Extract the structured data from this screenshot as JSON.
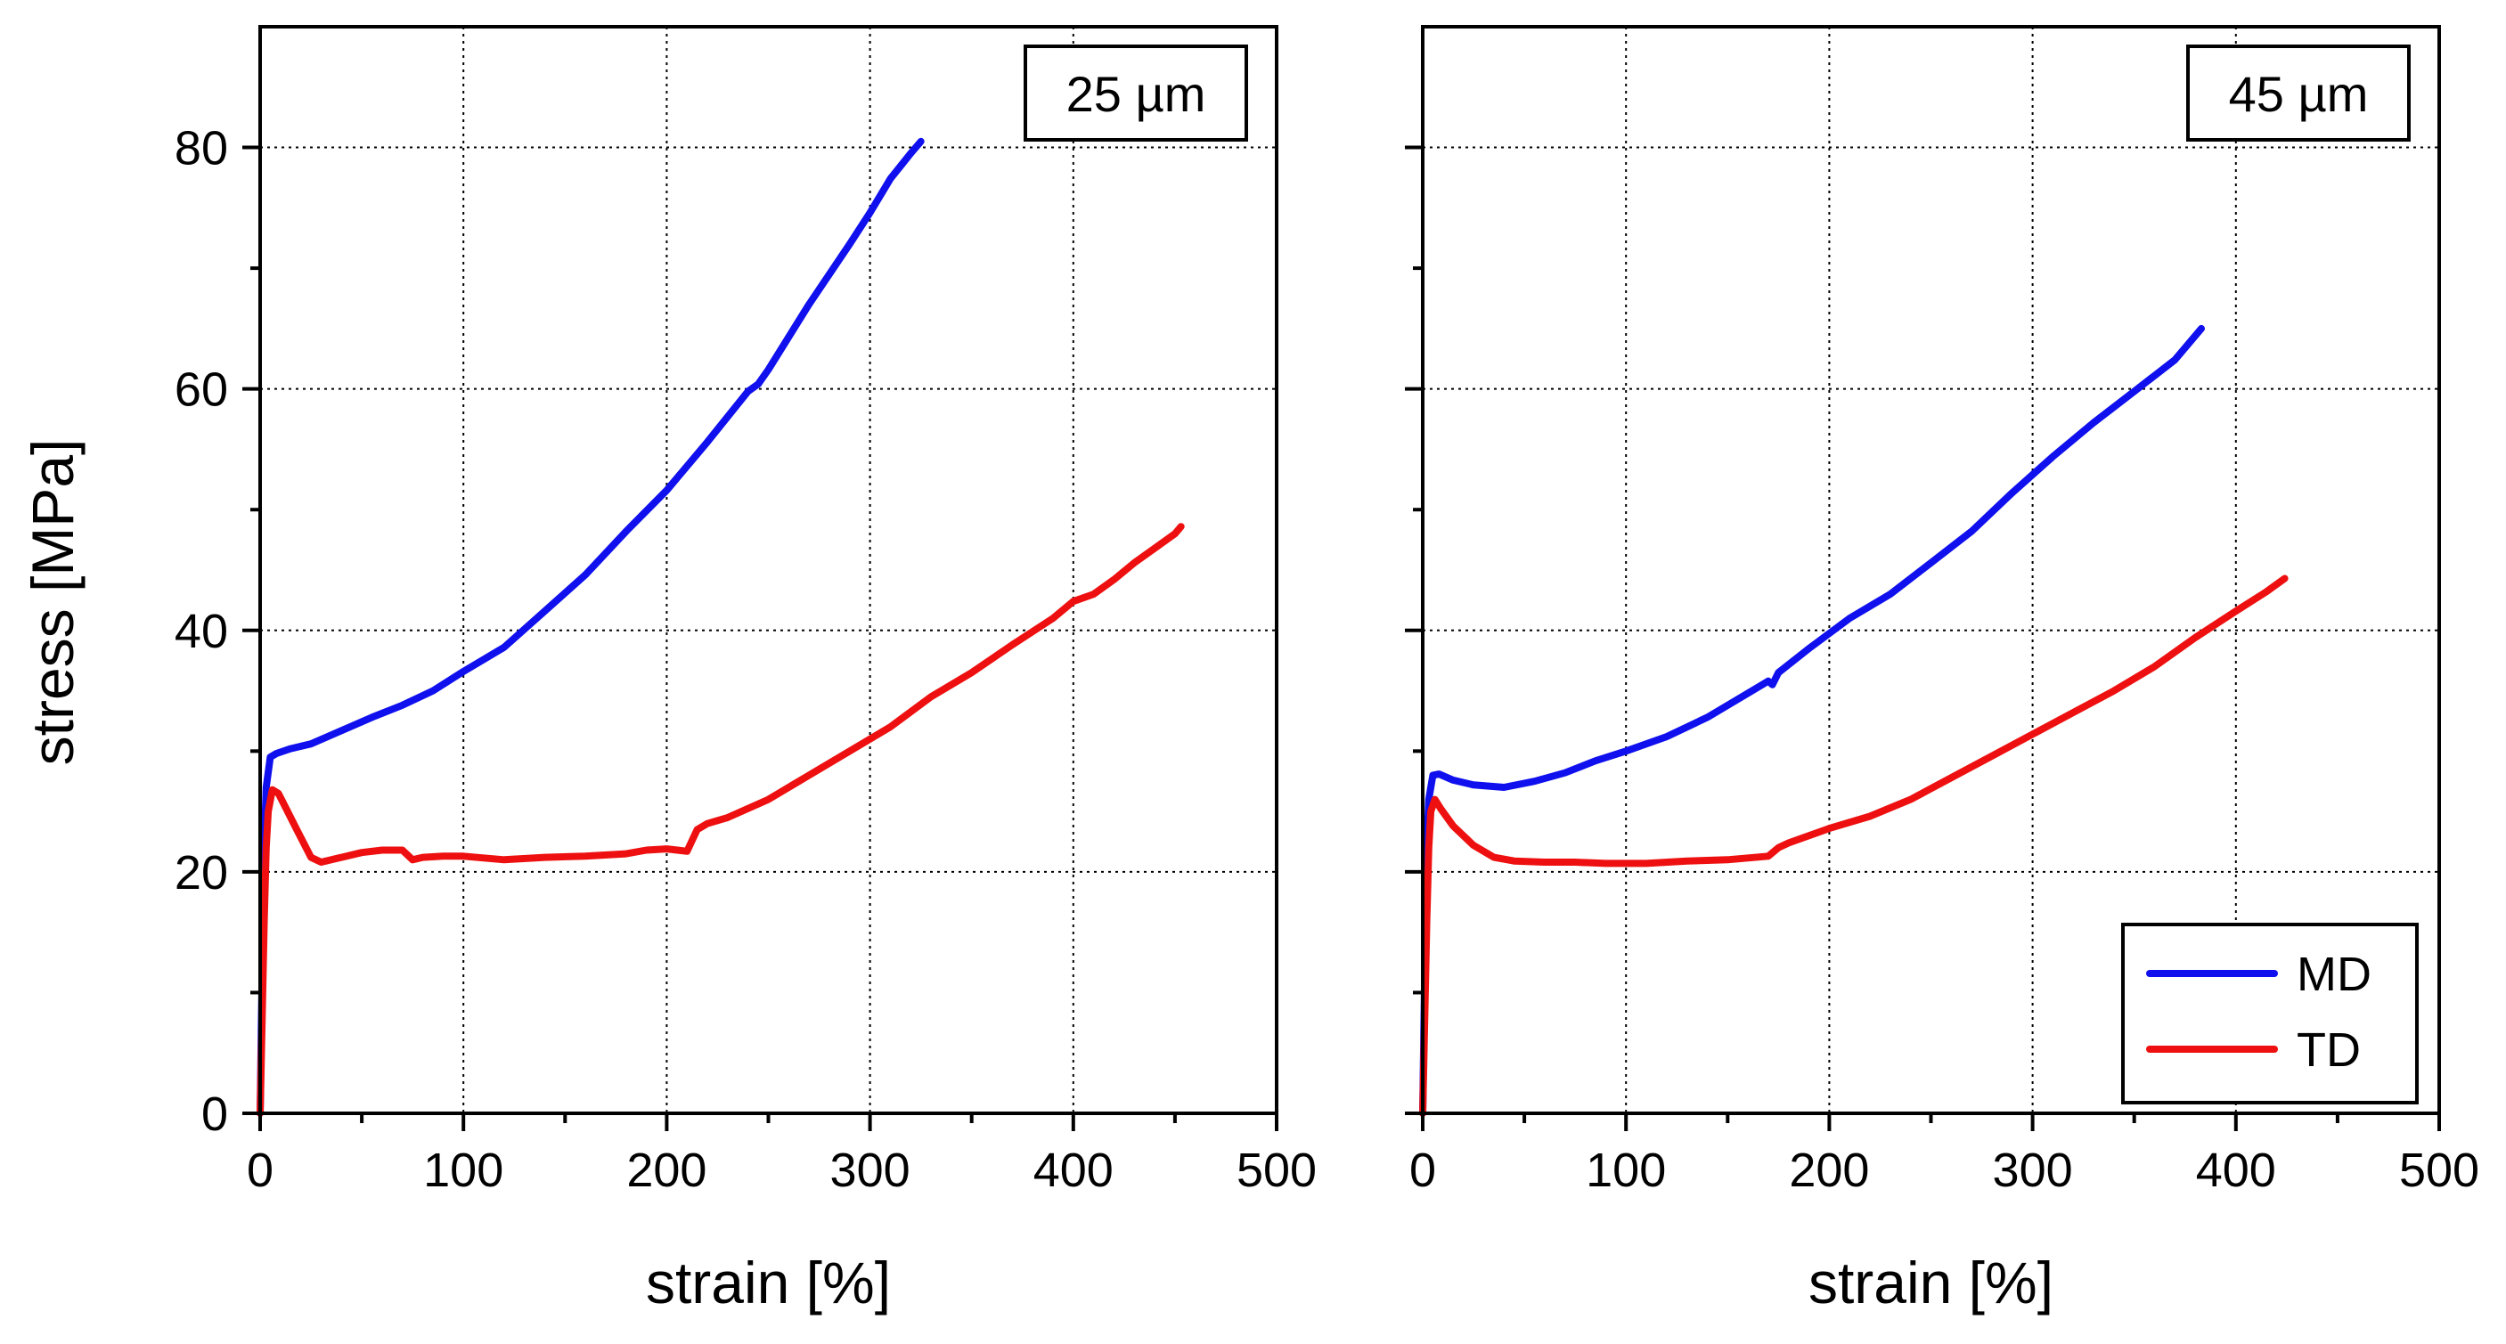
{
  "colors": {
    "MD": "#1010ee",
    "TD": "#ee1010",
    "grid": "#000000",
    "axes": "#000000",
    "background": "#ffffff"
  },
  "ylabel": "stress [MPa]",
  "legend": {
    "placement": "bottom-right",
    "panel": 1,
    "entries": [
      "MD",
      "TD"
    ]
  },
  "chart_data": [
    {
      "type": "line",
      "panel_label": "25 µm",
      "xlabel": "strain [%]",
      "ylabel": "stress [MPa]",
      "xlim": [
        0,
        500
      ],
      "ylim": [
        0,
        90
      ],
      "xticks": [
        "0",
        "100",
        "200",
        "300",
        "400",
        "500"
      ],
      "yticks": [
        "0",
        "20",
        "40",
        "60",
        "80"
      ],
      "grid": true,
      "series": [
        {
          "name": "MD",
          "x": [
            0,
            1,
            2,
            3,
            5,
            8,
            15,
            25,
            40,
            55,
            70,
            85,
            100,
            120,
            140,
            160,
            180,
            200,
            220,
            240,
            245,
            250,
            270,
            290,
            300,
            310,
            320,
            325
          ],
          "y": [
            0,
            12,
            22,
            27,
            29.5,
            29.8,
            30.2,
            30.6,
            31.7,
            32.8,
            33.8,
            35.0,
            36.6,
            38.6,
            41.6,
            44.6,
            48.2,
            51.6,
            55.6,
            59.8,
            60.4,
            61.6,
            67.0,
            72.0,
            74.6,
            77.4,
            79.5,
            80.5
          ]
        },
        {
          "name": "TD",
          "x": [
            0,
            1,
            2,
            3,
            4,
            6,
            9,
            12,
            18,
            25,
            30,
            40,
            50,
            60,
            70,
            75,
            80,
            90,
            100,
            120,
            140,
            160,
            180,
            190,
            200,
            210,
            215,
            220,
            230,
            250,
            270,
            290,
            310,
            330,
            350,
            370,
            390,
            400,
            410,
            420,
            430,
            440,
            450,
            453
          ],
          "y": [
            0,
            8,
            16,
            22,
            25,
            26.8,
            26.5,
            25.5,
            23.5,
            21.2,
            20.8,
            21.2,
            21.6,
            21.8,
            21.8,
            21.0,
            21.2,
            21.3,
            21.3,
            21.0,
            21.2,
            21.3,
            21.5,
            21.8,
            21.9,
            21.7,
            23.5,
            24.0,
            24.5,
            26.0,
            28.0,
            30.0,
            32.0,
            34.5,
            36.5,
            38.8,
            41.0,
            42.4,
            43.0,
            44.2,
            45.6,
            46.8,
            48.0,
            48.6
          ]
        }
      ]
    },
    {
      "type": "line",
      "panel_label": "45 µm",
      "xlabel": "strain [%]",
      "ylabel": "",
      "xlim": [
        0,
        500
      ],
      "ylim": [
        0,
        90
      ],
      "xticks": [
        "0",
        "100",
        "200",
        "300",
        "400",
        "500"
      ],
      "yticks": [],
      "grid": true,
      "series": [
        {
          "name": "MD",
          "x": [
            0,
            1,
            2,
            3,
            5,
            8,
            15,
            25,
            40,
            55,
            70,
            85,
            100,
            120,
            140,
            160,
            170,
            172,
            175,
            190,
            210,
            230,
            250,
            270,
            290,
            310,
            330,
            350,
            370,
            383
          ],
          "y": [
            0,
            12,
            22,
            26,
            28.0,
            28.1,
            27.6,
            27.2,
            27.0,
            27.5,
            28.2,
            29.2,
            30.0,
            31.2,
            32.8,
            34.8,
            35.8,
            35.5,
            36.5,
            38.5,
            41.0,
            43.0,
            45.6,
            48.2,
            51.4,
            54.4,
            57.2,
            59.8,
            62.4,
            65.0
          ]
        },
        {
          "name": "TD",
          "x": [
            0,
            1,
            2,
            3,
            4,
            6,
            9,
            15,
            25,
            35,
            45,
            60,
            75,
            90,
            110,
            130,
            150,
            170,
            175,
            180,
            200,
            220,
            240,
            260,
            280,
            300,
            320,
            340,
            360,
            380,
            400,
            415,
            424
          ],
          "y": [
            0,
            8,
            16,
            22,
            25,
            26.0,
            25.2,
            23.8,
            22.2,
            21.2,
            20.9,
            20.8,
            20.8,
            20.7,
            20.7,
            20.9,
            21.0,
            21.3,
            22.0,
            22.4,
            23.6,
            24.6,
            26.0,
            27.8,
            29.6,
            31.4,
            33.2,
            35.0,
            37.0,
            39.4,
            41.6,
            43.2,
            44.3
          ]
        }
      ]
    }
  ]
}
